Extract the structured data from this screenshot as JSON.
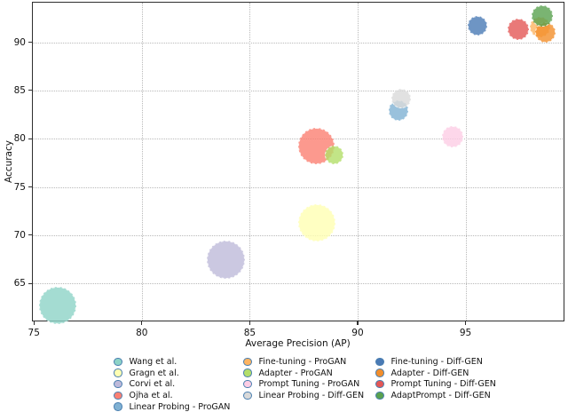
{
  "chart_data": {
    "type": "scatter",
    "title": "",
    "xlabel": "Average Precision (AP)",
    "ylabel": "Accuracy",
    "x_ticks": [
      75,
      80,
      85,
      90,
      95
    ],
    "y_ticks": [
      65,
      70,
      75,
      80,
      85,
      90
    ],
    "xlim": [
      74.95,
      99.5
    ],
    "ylim": [
      61.2,
      94.1
    ],
    "grid": "dotted",
    "legend_position": "below-chart, 3 columns, no frame",
    "series": [
      {
        "name": "Wang et al.",
        "ap": 76.1,
        "accuracy": 62.7,
        "radius_px": 20.8,
        "color": "#8dd3c7"
      },
      {
        "name": "Gragn et al.",
        "ap": 88.1,
        "accuracy": 71.3,
        "radius_px": 21.0,
        "color": "#ffffb3"
      },
      {
        "name": "Corvi et al.",
        "ap": 83.9,
        "accuracy": 67.5,
        "radius_px": 21.5,
        "color": "#bebada"
      },
      {
        "name": "Ojha et al.",
        "ap": 88.1,
        "accuracy": 79.2,
        "radius_px": 20.5,
        "color": "#fb8072"
      },
      {
        "name": "Linear Probing - ProGAN",
        "ap": 91.9,
        "accuracy": 82.9,
        "radius_px": 11.3,
        "color": "#80b1d3"
      },
      {
        "name": "Fine-tuning - ProGAN",
        "ap": 98.45,
        "accuracy": 91.6,
        "radius_px": 11.5,
        "color": "#fdb462"
      },
      {
        "name": "Adapter - ProGAN",
        "ap": 88.9,
        "accuracy": 78.3,
        "radius_px": 10.7,
        "color": "#b3de69"
      },
      {
        "name": "Prompt Tuning - ProGAN",
        "ap": 94.4,
        "accuracy": 80.2,
        "radius_px": 11.7,
        "color": "#fccde5"
      },
      {
        "name": "Linear Probing - Diff-GEN",
        "ap": 92.0,
        "accuracy": 84.2,
        "radius_px": 11.0,
        "color": "#d9d9d9"
      },
      {
        "name": "Fine-tuning - Diff-GEN",
        "ap": 95.55,
        "accuracy": 91.7,
        "radius_px": 11.2,
        "color": "#4a7ab5"
      },
      {
        "name": "Adapter - Diff-GEN",
        "ap": 98.7,
        "accuracy": 91.0,
        "radius_px": 11.5,
        "color": "#f28e2b"
      },
      {
        "name": "Prompt Tuning - Diff-GEN",
        "ap": 97.45,
        "accuracy": 91.3,
        "radius_px": 12.0,
        "color": "#e45756"
      },
      {
        "name": "AdaptPrompt - Diff-GEN",
        "ap": 98.55,
        "accuracy": 92.7,
        "radius_px": 11.8,
        "color": "#59a14f"
      }
    ],
    "legend_columns": [
      [
        "Wang et al.",
        "Gragn et al.",
        "Corvi et al.",
        "Ojha et al.",
        "Linear Probing - ProGAN"
      ],
      [
        "Fine-tuning - ProGAN",
        "Adapter - ProGAN",
        "Prompt Tuning - ProGAN",
        "Linear Probing - Diff-GEN"
      ],
      [
        "Fine-tuning - Diff-GEN",
        "Adapter - Diff-GEN",
        "Prompt Tuning - Diff-GEN",
        "AdaptPrompt - Diff-GEN"
      ]
    ]
  },
  "style": {
    "marker_edge_color": "#4a7fb0",
    "grid_color": "#b9b9b9",
    "spine_color": "#2e2e2e",
    "bubble_alpha": 0.8
  }
}
